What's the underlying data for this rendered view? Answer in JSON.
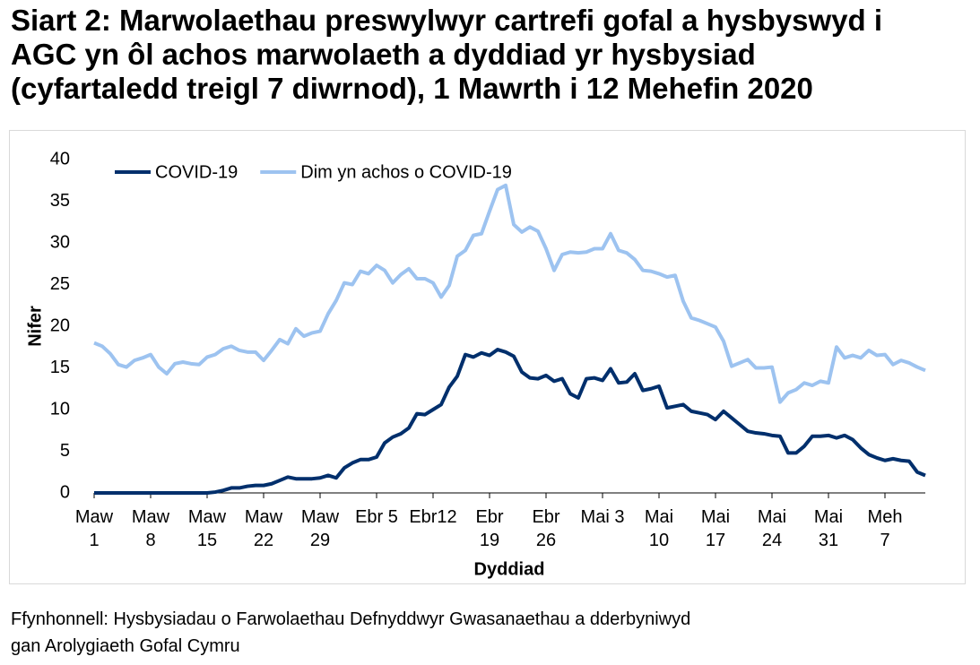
{
  "chart_data": {
    "type": "line",
    "title": "Siart 2: Marwolaethau preswylwyr cartrefi gofal a hysbyswyd i\nAGC yn ôl achos marwolaeth a dyddiad yr hysbysiad\n(cyfartaledd treigl 7 diwrnod), 1 Mawrth i 12 Mehefin 2020",
    "source": "Ffynhonnell: Hysbysiadau o Farwolaethau Defnyddwyr Gwasanaethau a dderbyniwyd\ngan Arolygiaeth Gofal Cymru",
    "x_label": "Dyddiad",
    "y_label": "Nifer",
    "ylim": [
      0,
      40
    ],
    "yticks": [
      0,
      5,
      10,
      15,
      20,
      25,
      30,
      35,
      40
    ],
    "categories": [
      "Maw\n1",
      null,
      null,
      null,
      null,
      null,
      null,
      "Maw\n8",
      null,
      null,
      null,
      null,
      null,
      null,
      "Maw\n15",
      null,
      null,
      null,
      null,
      null,
      null,
      "Maw\n22",
      null,
      null,
      null,
      null,
      null,
      null,
      "Maw\n29",
      null,
      null,
      null,
      null,
      null,
      null,
      "Ebr 5",
      null,
      null,
      null,
      null,
      null,
      null,
      "Ebr12",
      null,
      null,
      null,
      null,
      null,
      null,
      "Ebr\n19",
      null,
      null,
      null,
      null,
      null,
      null,
      "Ebr\n26",
      null,
      null,
      null,
      null,
      null,
      null,
      "Mai 3",
      null,
      null,
      null,
      null,
      null,
      null,
      "Mai\n10",
      null,
      null,
      null,
      null,
      null,
      null,
      "Mai\n17",
      null,
      null,
      null,
      null,
      null,
      null,
      "Mai\n24",
      null,
      null,
      null,
      null,
      null,
      null,
      "Mai\n31",
      null,
      null,
      null,
      null,
      null,
      null,
      "Meh\n7",
      null,
      null,
      null,
      null,
      null
    ],
    "legend": "top-left",
    "series": [
      {
        "name": "COVID-19",
        "color": "#002f6c",
        "values": [
          0,
          0,
          0,
          0,
          0,
          0,
          0,
          0,
          0,
          0,
          0,
          0,
          0,
          0,
          0,
          0.1,
          0.3,
          0.6,
          0.6,
          0.8,
          0.9,
          0.9,
          1.1,
          1.5,
          1.9,
          1.7,
          1.7,
          1.7,
          1.8,
          2.1,
          1.8,
          3,
          3.6,
          4,
          4,
          4.3,
          6,
          6.7,
          7.1,
          7.8,
          9.5,
          9.4,
          10,
          10.6,
          12.7,
          14,
          16.6,
          16.3,
          16.8,
          16.5,
          17.2,
          16.9,
          16.4,
          14.5,
          13.8,
          13.7,
          14.1,
          13.4,
          13.7,
          11.9,
          11.4,
          13.7,
          13.8,
          13.5,
          14.9,
          13.2,
          13.3,
          14.3,
          12.3,
          12.5,
          12.8,
          10.2,
          10.4,
          10.6,
          9.8,
          9.6,
          9.4,
          8.8,
          9.8,
          9,
          8.2,
          7.4,
          7.2,
          7.1,
          6.9,
          6.8,
          4.8,
          4.8,
          5.6,
          6.8,
          6.8,
          6.9,
          6.6,
          6.9,
          6.4,
          5.4,
          4.6,
          4.2,
          3.9,
          4.1,
          3.9,
          3.8,
          2.5,
          2.1
        ]
      },
      {
        "name": "Dim yn achos o COVID-19",
        "color": "#9dc3f0",
        "values": [
          18,
          17.6,
          16.7,
          15.4,
          15.1,
          15.9,
          16.2,
          16.6,
          15.1,
          14.3,
          15.5,
          15.7,
          15.5,
          15.4,
          16.3,
          16.6,
          17.3,
          17.6,
          17.1,
          16.9,
          16.9,
          15.9,
          17.1,
          18.4,
          17.9,
          19.7,
          18.8,
          19.2,
          19.4,
          21.5,
          23.1,
          25.2,
          25,
          26.6,
          26.3,
          27.3,
          26.7,
          25.2,
          26.2,
          26.9,
          25.7,
          25.7,
          25.2,
          23.5,
          24.9,
          28.4,
          29.1,
          30.9,
          31.1,
          33.8,
          36.4,
          36.9,
          32.2,
          31.3,
          31.9,
          31.4,
          29.3,
          26.7,
          28.6,
          28.9,
          28.8,
          28.9,
          29.3,
          29.3,
          31.1,
          29.1,
          28.8,
          28,
          26.7,
          26.6,
          26.3,
          25.9,
          26.1,
          23,
          21,
          20.7,
          20.3,
          19.9,
          18.2,
          15.2,
          15.6,
          16,
          15,
          15,
          15.1,
          10.9,
          12,
          12.4,
          13.2,
          12.9,
          13.4,
          13.2,
          17.5,
          16.2,
          16.5,
          16.2,
          17.1,
          16.5,
          16.6,
          15.4,
          15.9,
          15.6,
          15.1,
          14.7
        ]
      }
    ]
  }
}
